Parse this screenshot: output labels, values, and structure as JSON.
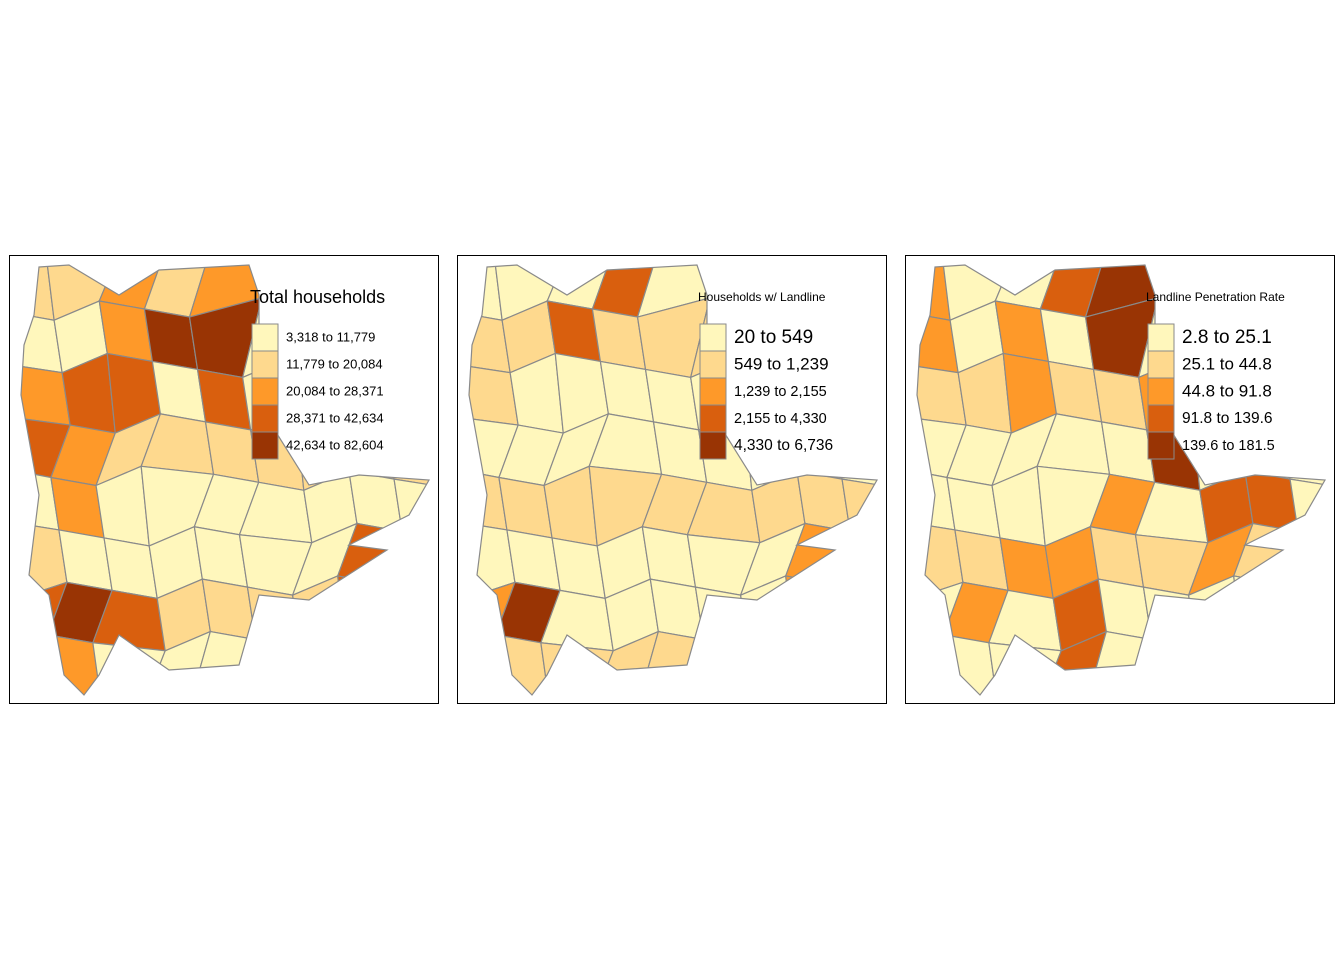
{
  "panels": [
    {
      "title": "Total households",
      "legend": [
        {
          "label": "3,318 to 11,779",
          "color": "#FFF7BC"
        },
        {
          "label": "11,779 to 20,084",
          "color": "#FED98E"
        },
        {
          "label": "20,084 to 28,371",
          "color": "#FE9929"
        },
        {
          "label": "28,371 to 42,634",
          "color": "#D95F0E"
        },
        {
          "label": "42,634 to 82,604",
          "color": "#993404"
        }
      ]
    },
    {
      "title": "Households w/ Landline",
      "legend": [
        {
          "label": "20 to 549",
          "color": "#FFF7BC"
        },
        {
          "label": "549 to 1,239",
          "color": "#FED98E"
        },
        {
          "label": "1,239 to 2,155",
          "color": "#FE9929"
        },
        {
          "label": "2,155 to 4,330",
          "color": "#D95F0E"
        },
        {
          "label": "4,330 to 6,736",
          "color": "#993404"
        }
      ]
    },
    {
      "title": "Landline Penetration Rate",
      "legend": [
        {
          "label": "2.8 to 25.1",
          "color": "#FFF7BC"
        },
        {
          "label": "25.1 to 44.8",
          "color": "#FED98E"
        },
        {
          "label": "44.8 to 91.8",
          "color": "#FE9929"
        },
        {
          "label": "91.8 to 139.6",
          "color": "#D95F0E"
        },
        {
          "label": "139.6 to 181.5",
          "color": "#993404"
        }
      ]
    }
  ]
}
